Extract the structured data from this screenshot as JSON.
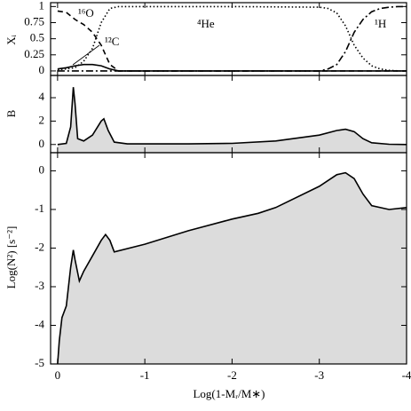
{
  "chart_data": [
    {
      "type": "line",
      "ylabel": "Xᵢ",
      "xlim": [
        0.08,
        -4
      ],
      "ylim": [
        -0.07,
        1.06
      ],
      "yticks": [
        0,
        0.25,
        0.5,
        0.75,
        1
      ],
      "x": [
        0,
        -0.1,
        -0.2,
        -0.3,
        -0.4,
        -0.5,
        -0.6,
        -0.7,
        -1,
        -2,
        -3,
        -3.1,
        -3.2,
        -3.3,
        -3.4,
        -3.5,
        -3.6,
        -3.7,
        -3.8,
        -3.9,
        -4
      ],
      "series": [
        {
          "name": "¹⁶O",
          "color": "#000000",
          "dash": "dashed",
          "values": [
            0.93,
            0.91,
            0.8,
            0.72,
            0.6,
            0.4,
            0.1,
            0.0,
            0,
            0,
            0,
            0,
            0,
            0,
            0,
            0,
            0,
            0,
            0,
            0,
            0
          ]
        },
        {
          "name": "¹²C",
          "color": "#000000",
          "dash": "solid",
          "values": [
            0.03,
            0.05,
            0.08,
            0.1,
            0.1,
            0.08,
            0.03,
            0.0,
            0,
            0,
            0,
            0,
            0,
            0,
            0,
            0,
            0,
            0,
            0,
            0,
            0
          ]
        },
        {
          "name": "⁴He",
          "color": "#000000",
          "dash": "dotted",
          "values": [
            0.02,
            0.03,
            0.05,
            0.15,
            0.35,
            0.75,
            0.97,
            1.0,
            1.0,
            1.0,
            0.99,
            0.97,
            0.9,
            0.7,
            0.4,
            0.2,
            0.08,
            0.03,
            0.01,
            0.0,
            0.0
          ]
        },
        {
          "name": "¹H",
          "color": "#000000",
          "dash": "dashdot",
          "values": [
            0,
            0,
            0,
            0,
            0,
            0,
            0,
            0,
            0,
            0,
            0.0,
            0.03,
            0.1,
            0.3,
            0.6,
            0.8,
            0.92,
            0.97,
            0.99,
            1.0,
            1.0
          ]
        }
      ]
    },
    {
      "type": "area",
      "ylabel": "B",
      "xlim": [
        0.08,
        -4
      ],
      "ylim": [
        -0.7,
        5.9
      ],
      "yticks": [
        0,
        2,
        4
      ],
      "x": [
        0,
        -0.1,
        -0.15,
        -0.18,
        -0.2,
        -0.23,
        -0.3,
        -0.4,
        -0.5,
        -0.53,
        -0.58,
        -0.65,
        -0.8,
        -1.5,
        -2,
        -2.5,
        -3,
        -3.2,
        -3.3,
        -3.4,
        -3.5,
        -3.6,
        -3.8,
        -4
      ],
      "series": [
        {
          "color": "#000000",
          "fill": "#dcdcdc",
          "values": [
            0,
            0.1,
            1.5,
            4.9,
            3.5,
            0.5,
            0.3,
            0.8,
            2.0,
            2.2,
            1.2,
            0.2,
            0.05,
            0.05,
            0.1,
            0.3,
            0.8,
            1.2,
            1.3,
            1.1,
            0.5,
            0.15,
            0.02,
            0
          ]
        }
      ]
    },
    {
      "type": "area",
      "ylabel": "Log(N²) [s⁻²]",
      "xlabel": "Log(1-Mᵣ/M∗)",
      "xlim": [
        0.08,
        -4
      ],
      "ylim": [
        -5,
        0.47
      ],
      "yticks": [
        -5,
        -4,
        -3,
        -2,
        -1,
        0
      ],
      "xticks": [
        0,
        -1,
        -2,
        -3,
        -4
      ],
      "x": [
        0,
        -0.02,
        -0.05,
        -0.1,
        -0.15,
        -0.18,
        -0.2,
        -0.25,
        -0.3,
        -0.4,
        -0.5,
        -0.55,
        -0.6,
        -0.65,
        -1,
        -1.5,
        -2,
        -2.3,
        -2.5,
        -3,
        -3.2,
        -3.3,
        -3.4,
        -3.5,
        -3.6,
        -3.8,
        -4
      ],
      "series": [
        {
          "color": "#000000",
          "fill": "#dcdcdc",
          "values": [
            -5,
            -4.4,
            -3.8,
            -3.5,
            -2.5,
            -2.05,
            -2.3,
            -2.85,
            -2.6,
            -2.2,
            -1.8,
            -1.65,
            -1.8,
            -2.1,
            -1.9,
            -1.55,
            -1.25,
            -1.1,
            -0.95,
            -0.4,
            -0.1,
            -0.05,
            -0.2,
            -0.6,
            -0.9,
            -1.0,
            -0.95
          ]
        }
      ]
    }
  ]
}
